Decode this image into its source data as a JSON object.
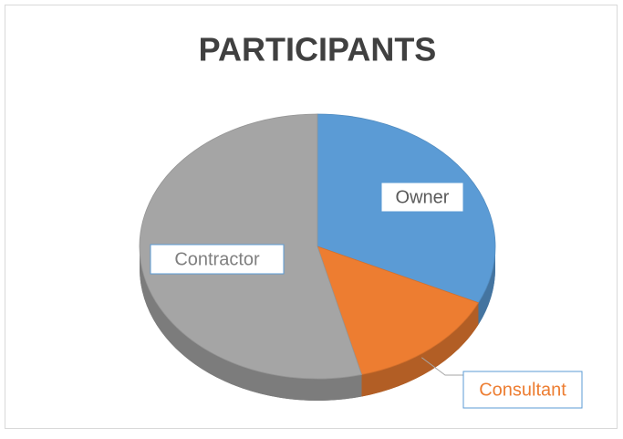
{
  "chart_data": {
    "type": "pie",
    "title": "PARTICIPANTS",
    "categories": [
      "Owner",
      "Consultant",
      "Contractor"
    ],
    "values": [
      32,
      14,
      54
    ],
    "colors": [
      "#5b9bd5",
      "#ed7d31",
      "#a5a5a5"
    ],
    "label_colors": [
      "#595959",
      "#ed7d31",
      "#7f7f7f"
    ]
  }
}
